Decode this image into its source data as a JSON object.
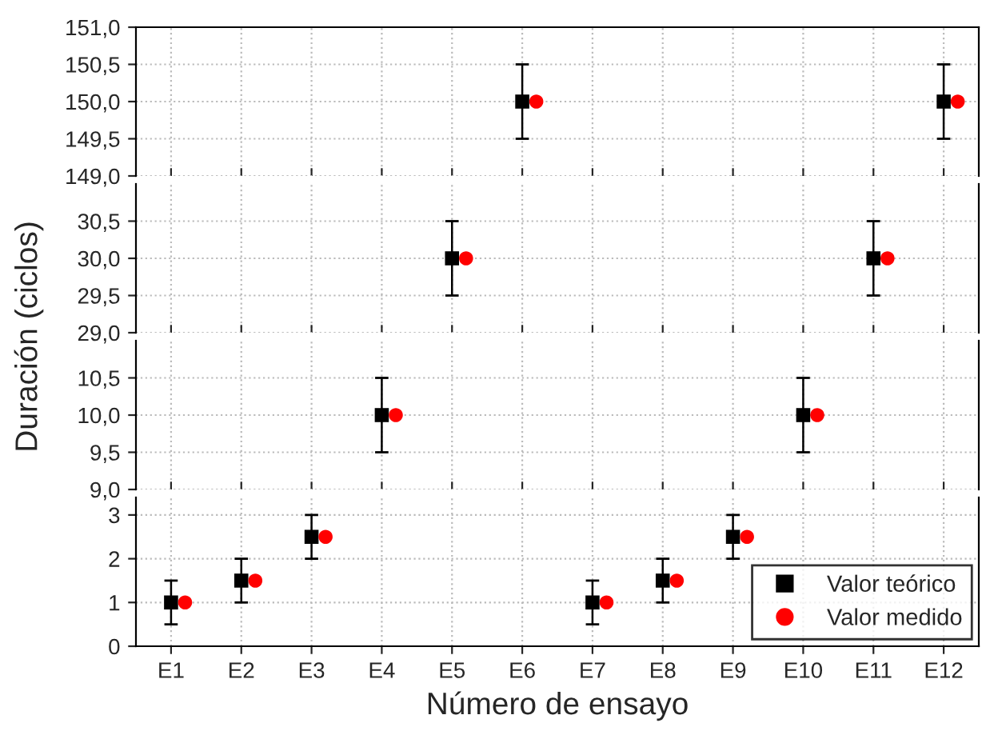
{
  "chart_data": [
    {
      "type": "scatter",
      "categories": [
        null,
        null,
        null,
        null,
        null,
        null,
        null,
        null,
        null,
        null,
        null,
        null
      ],
      "ylim": [
        149,
        151
      ],
      "yticks": [
        {
          "value": 149,
          "label": "149,0"
        },
        {
          "value": 149.5,
          "label": "149,5"
        },
        {
          "value": 150,
          "label": "150,0"
        },
        {
          "value": 150.5,
          "label": "150,5"
        },
        {
          "value": 151,
          "label": "151,0"
        }
      ],
      "tick_labels": "y",
      "grid": true,
      "series": [
        {
          "color": "#000000",
          "marker": "square",
          "values": [
            null,
            null,
            null,
            null,
            null,
            150,
            null,
            null,
            null,
            null,
            null,
            150
          ],
          "errors": [
            null,
            null,
            null,
            null,
            null,
            0.5,
            null,
            null,
            null,
            null,
            null,
            0.5
          ]
        },
        {
          "color": "#ff0000",
          "marker": "circle",
          "values": [
            null,
            null,
            null,
            null,
            null,
            150,
            null,
            null,
            null,
            null,
            null,
            150
          ]
        }
      ]
    },
    {
      "type": "scatter",
      "categories": [
        null,
        null,
        null,
        null,
        null,
        null,
        null,
        null,
        null,
        null,
        null,
        null
      ],
      "ylim": [
        29,
        31
      ],
      "yticks": [
        {
          "value": 29,
          "label": "29,0"
        },
        {
          "value": 29.5,
          "label": "29,5"
        },
        {
          "value": 30,
          "label": "30,0"
        },
        {
          "value": 30.5,
          "label": "30,5"
        }
      ],
      "tick_labels": "y",
      "grid": true,
      "series": [
        {
          "color": "#000000",
          "marker": "square",
          "values": [
            null,
            null,
            null,
            null,
            30,
            null,
            null,
            null,
            null,
            null,
            30,
            null
          ],
          "errors": [
            null,
            null,
            null,
            null,
            0.5,
            null,
            null,
            null,
            null,
            null,
            0.5,
            null
          ]
        },
        {
          "color": "#ff0000",
          "marker": "circle",
          "values": [
            null,
            null,
            null,
            null,
            30,
            null,
            null,
            null,
            null,
            null,
            30,
            null
          ]
        }
      ]
    },
    {
      "type": "scatter",
      "categories": [
        null,
        null,
        null,
        null,
        null,
        null,
        null,
        null,
        null,
        null,
        null,
        null
      ],
      "ylim": [
        9,
        11
      ],
      "yticks": [
        {
          "value": 9,
          "label": "9,0"
        },
        {
          "value": 9.5,
          "label": "9,5"
        },
        {
          "value": 10,
          "label": "10,0"
        },
        {
          "value": 10.5,
          "label": "10,5"
        }
      ],
      "tick_labels": "y",
      "grid": true,
      "series": [
        {
          "color": "#000000",
          "marker": "square",
          "values": [
            null,
            null,
            null,
            10,
            null,
            null,
            null,
            null,
            null,
            10,
            null,
            null
          ],
          "errors": [
            null,
            null,
            null,
            0.5,
            null,
            null,
            null,
            null,
            null,
            0.5,
            null,
            null
          ]
        },
        {
          "color": "#ff0000",
          "marker": "circle",
          "values": [
            null,
            null,
            null,
            10,
            null,
            null,
            null,
            null,
            null,
            10,
            null,
            null
          ]
        }
      ]
    },
    {
      "type": "scatter",
      "categories": [
        "E1",
        "E2",
        "E3",
        "E4",
        "E5",
        "E6",
        "E7",
        "E8",
        "E9",
        "E10",
        "E11",
        "E12"
      ],
      "xlabel": "Número de ensayo",
      "ylabel": "Duración (ciclos)",
      "ylim": [
        0,
        3.4
      ],
      "yticks": [
        0,
        1,
        2,
        3
      ],
      "grid": true,
      "legend": "bottom right",
      "series": [
        {
          "name": "Valor teórico",
          "color": "#000000",
          "marker": "square",
          "values": [
            1,
            1.5,
            2.5,
            null,
            null,
            null,
            1,
            1.5,
            2.5,
            null,
            null,
            null
          ],
          "errors": [
            0.5,
            0.5,
            0.5,
            null,
            null,
            null,
            0.5,
            0.5,
            0.5,
            null,
            null,
            null
          ]
        },
        {
          "name": "Valor medido",
          "color": "#ff0000",
          "marker": "circle",
          "values": [
            1,
            1.5,
            2.5,
            null,
            null,
            null,
            1,
            1.5,
            2.5,
            null,
            null,
            null
          ]
        }
      ]
    }
  ]
}
